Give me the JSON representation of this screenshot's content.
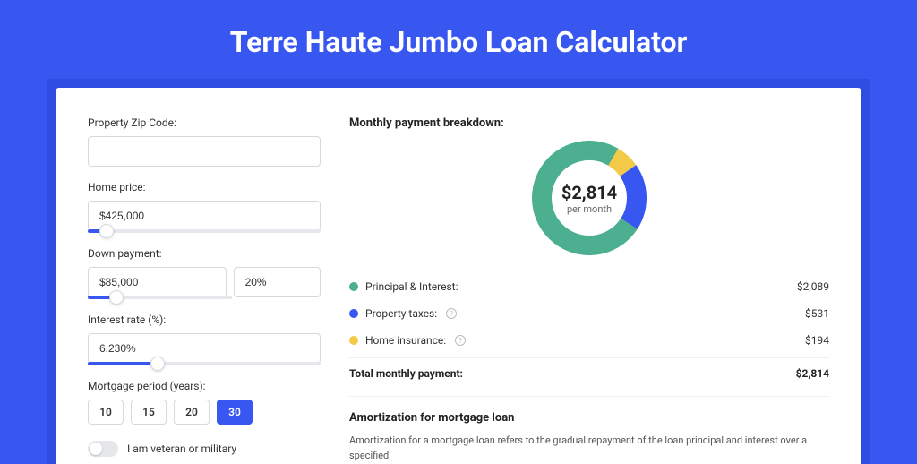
{
  "page": {
    "title": "Terre Haute Jumbo Loan Calculator",
    "background_color": "#3757f0",
    "shadow_color": "#2f4de0"
  },
  "form": {
    "zip": {
      "label": "Property Zip Code:",
      "value": ""
    },
    "home_price": {
      "label": "Home price:",
      "value": "$425,000",
      "slider_percent": 8
    },
    "down_payment": {
      "label": "Down payment:",
      "amount": "$85,000",
      "percent": "20%",
      "slider_percent": 20
    },
    "interest_rate": {
      "label": "Interest rate (%):",
      "value": "6.230%",
      "slider_percent": 30
    },
    "mortgage_period": {
      "label": "Mortgage period (years):",
      "options": [
        "10",
        "15",
        "20",
        "30"
      ],
      "selected": "30"
    },
    "veteran": {
      "label": "I am veteran or military",
      "checked": false
    }
  },
  "breakdown": {
    "title": "Monthly payment breakdown:",
    "center_amount": "$2,814",
    "center_sub": "per month",
    "donut": {
      "segments": [
        {
          "label": "Principal & Interest:",
          "value": "$2,089",
          "color": "#4caf8f",
          "percent": 74.2,
          "has_info": false
        },
        {
          "label": "Property taxes:",
          "value": "$531",
          "color": "#3757f0",
          "percent": 18.9,
          "has_info": true
        },
        {
          "label": "Home insurance:",
          "value": "$194",
          "color": "#f3c948",
          "percent": 6.9,
          "has_info": true
        }
      ],
      "thickness": 22,
      "radius": 64
    },
    "total": {
      "label": "Total monthly payment:",
      "value": "$2,814"
    }
  },
  "amortization": {
    "title": "Amortization for mortgage loan",
    "text": "Amortization for a mortgage loan refers to the gradual repayment of the loan principal and interest over a specified"
  }
}
